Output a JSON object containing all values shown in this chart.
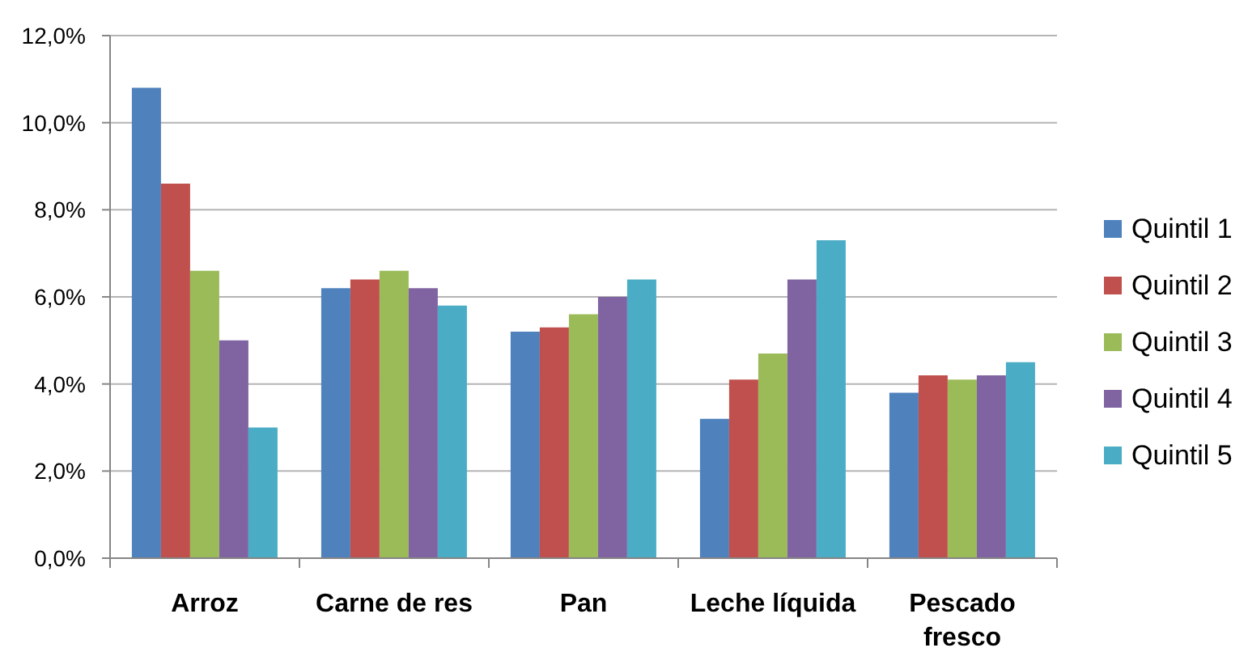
{
  "chart_data": {
    "type": "bar",
    "categories": [
      "Arroz",
      "Carne de res",
      "Pan",
      "Leche líquida",
      "Pescado fresco"
    ],
    "series": [
      {
        "name": "Quintil 1",
        "color": "#4f81bd",
        "values": [
          10.8,
          6.2,
          5.2,
          3.2,
          3.8
        ]
      },
      {
        "name": "Quintil 2",
        "color": "#c0504d",
        "values": [
          8.6,
          6.4,
          5.3,
          4.1,
          4.2
        ]
      },
      {
        "name": "Quintil 3",
        "color": "#9bbb59",
        "values": [
          6.6,
          6.6,
          5.6,
          4.7,
          4.1
        ]
      },
      {
        "name": "Quintil 4",
        "color": "#8064a2",
        "values": [
          5.0,
          6.2,
          6.0,
          6.4,
          4.2
        ]
      },
      {
        "name": "Quintil 5",
        "color": "#4bacc6",
        "values": [
          3.0,
          5.8,
          6.4,
          7.3,
          4.5
        ]
      }
    ],
    "ylim": [
      0,
      12
    ],
    "yticks": [
      {
        "value": 0,
        "label": "0,0%"
      },
      {
        "value": 2,
        "label": "2,0%"
      },
      {
        "value": 4,
        "label": "4,0%"
      },
      {
        "value": 6,
        "label": "6,0%"
      },
      {
        "value": 8,
        "label": "8,0%"
      },
      {
        "value": 10,
        "label": "10,0%"
      },
      {
        "value": 12,
        "label": "12,0%"
      }
    ],
    "grid": "y",
    "legend": "right"
  }
}
